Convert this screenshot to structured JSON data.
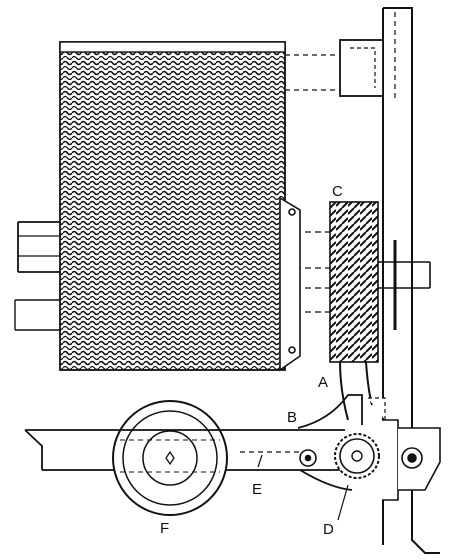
{
  "figure": {
    "labels": {
      "a": "A",
      "b": "B",
      "c": "C",
      "d": "D",
      "e": "E",
      "f": "F"
    },
    "colors": {
      "ink": "#111111",
      "paper": "#ffffff"
    }
  }
}
